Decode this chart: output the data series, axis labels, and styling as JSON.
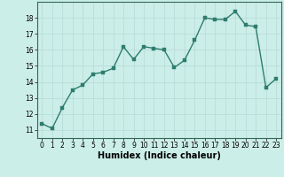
{
  "x": [
    0,
    1,
    2,
    3,
    4,
    5,
    6,
    7,
    8,
    9,
    10,
    11,
    12,
    13,
    14,
    15,
    16,
    17,
    18,
    19,
    20,
    21,
    22,
    23
  ],
  "y": [
    11.4,
    11.1,
    12.4,
    13.5,
    13.8,
    14.5,
    14.6,
    14.85,
    16.2,
    15.4,
    16.2,
    16.1,
    16.0,
    14.9,
    15.35,
    16.6,
    18.0,
    17.9,
    17.9,
    18.4,
    17.55,
    17.45,
    13.65,
    14.2
  ],
  "line_color": "#2e7d6e",
  "marker_color": "#2e7d6e",
  "bg_color": "#cceee8",
  "grid_color": "#b8ddd8",
  "xlabel": "Humidex (Indice chaleur)",
  "xlim": [
    -0.5,
    23.5
  ],
  "ylim": [
    10.5,
    19.0
  ],
  "yticks": [
    11,
    12,
    13,
    14,
    15,
    16,
    17,
    18
  ],
  "xticks": [
    0,
    1,
    2,
    3,
    4,
    5,
    6,
    7,
    8,
    9,
    10,
    11,
    12,
    13,
    14,
    15,
    16,
    17,
    18,
    19,
    20,
    21,
    22,
    23
  ],
  "tick_fontsize": 5.5,
  "xlabel_fontsize": 7.0,
  "marker_size": 2.5,
  "line_width": 1.0
}
